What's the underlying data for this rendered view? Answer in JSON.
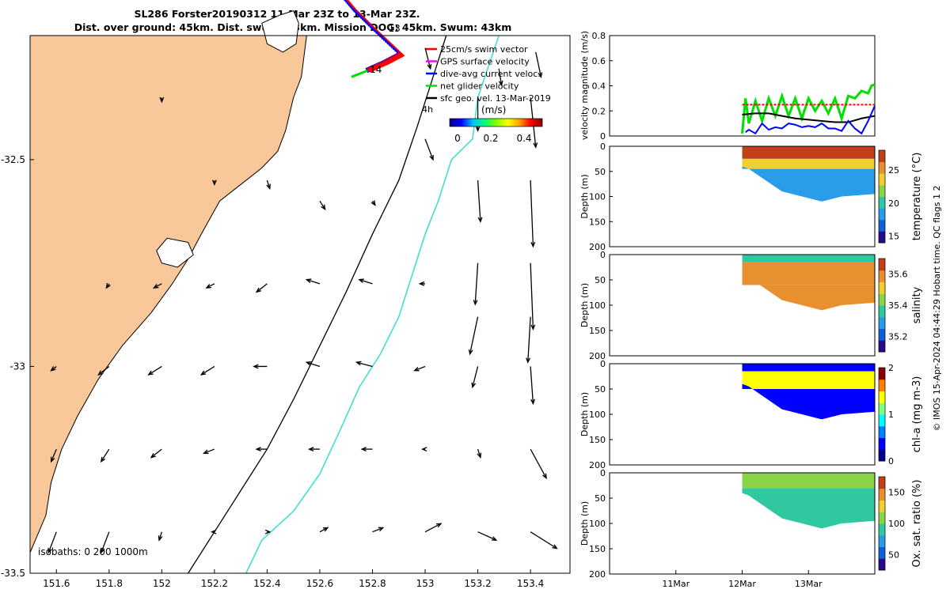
{
  "title": {
    "line1": "SL286 Forster20190312 11-Mar 23Z to 13-Mar 23Z.",
    "line2": "Dist. over ground: 45km. Dist. swum: 43km. Mission DOG: 45km. Swum: 43km"
  },
  "credit": "© IMOS 15-Apr-2024 04:44:29 Hobart time. QC flags 1  2",
  "colors": {
    "land": "#f9c89a",
    "isobath_200": "#000000",
    "isobath_1000": "#40e0d0",
    "swim_vector": "#ff0000",
    "gps_surface": "#ff00ff",
    "dive_avg": "#0000ff",
    "net_glider": "#00e000",
    "sfc_geo": "#000000"
  },
  "chart_data": [
    {
      "type": "map",
      "xlim": [
        151.5,
        153.55
      ],
      "ylim": [
        -33.5,
        -32.2
      ],
      "x_ticks": [
        "151.6",
        "151.8",
        "152",
        "152.2",
        "152.4",
        "152.6",
        "152.8",
        "153",
        "153.2",
        "153.4"
      ],
      "y_ticks": [
        "-32",
        "-32.5",
        "-33",
        "-33.5"
      ],
      "legend": {
        "placement": "top-right",
        "entries": [
          {
            "label": "25cm/s swim vector",
            "color": "#ff0000"
          },
          {
            "label": "GPS surface velocity",
            "color": "#ff00ff"
          },
          {
            "label": "dive-avg current veloc.",
            "color": "#0000ff"
          },
          {
            "label": "net glider velocity",
            "color": "#00e000"
          },
          {
            "label": "sfc geo. vel. 13-Mar-2019",
            "color": "#000000"
          }
        ],
        "colorbar_label": "(m/s)",
        "colorbar_ticks": [
          "0",
          "0.2",
          "0.4"
        ],
        "speed_scale_label": "4h"
      },
      "day_labels": [
        {
          "text": "12",
          "lon": 152.65,
          "lat": -32.07
        },
        {
          "text": "13",
          "lon": 152.86,
          "lat": -32.19
        },
        {
          "text": "14",
          "lon": 152.79,
          "lat": -32.29
        }
      ],
      "isobath_note": "isobaths: 0  200  1000m",
      "vectors": [
        [
          153.0,
          -32.23,
          153.02,
          -32.28
        ],
        [
          153.28,
          -32.28,
          153.29,
          -32.32
        ],
        [
          153.42,
          -32.24,
          153.44,
          -32.3
        ],
        [
          153.2,
          -32.35,
          153.2,
          -32.43
        ],
        [
          153.4,
          -32.35,
          153.42,
          -32.47
        ],
        [
          152.0,
          -32.35,
          152.0,
          -32.36
        ],
        [
          153.0,
          -32.45,
          153.03,
          -32.5
        ],
        [
          153.2,
          -32.55,
          153.21,
          -32.65
        ],
        [
          153.4,
          -32.55,
          153.41,
          -32.71
        ],
        [
          152.2,
          -32.55,
          152.2,
          -32.56
        ],
        [
          152.4,
          -32.55,
          152.41,
          -32.57
        ],
        [
          152.6,
          -32.6,
          152.62,
          -32.62
        ],
        [
          152.8,
          -32.6,
          152.81,
          -32.61
        ],
        [
          153.2,
          -32.75,
          153.19,
          -32.85
        ],
        [
          153.4,
          -32.75,
          153.41,
          -32.91
        ],
        [
          151.8,
          -32.8,
          151.79,
          -32.81
        ],
        [
          152.0,
          -32.8,
          151.97,
          -32.81
        ],
        [
          152.2,
          -32.8,
          152.17,
          -32.81
        ],
        [
          152.4,
          -32.8,
          152.36,
          -32.82
        ],
        [
          152.6,
          -32.8,
          152.55,
          -32.79
        ],
        [
          152.8,
          -32.8,
          152.75,
          -32.79
        ],
        [
          153.0,
          -32.8,
          152.98,
          -32.8
        ],
        [
          153.2,
          -32.88,
          153.17,
          -32.97
        ],
        [
          153.4,
          -32.88,
          153.39,
          -32.99
        ],
        [
          151.6,
          -33.0,
          151.58,
          -33.01
        ],
        [
          151.8,
          -33.0,
          151.76,
          -33.02
        ],
        [
          152.0,
          -33.0,
          151.95,
          -33.02
        ],
        [
          152.2,
          -33.0,
          152.15,
          -33.02
        ],
        [
          152.4,
          -33.0,
          152.35,
          -33.0
        ],
        [
          152.6,
          -33.0,
          152.55,
          -32.99
        ],
        [
          152.8,
          -33.0,
          152.74,
          -32.99
        ],
        [
          153.0,
          -33.0,
          152.96,
          -33.01
        ],
        [
          153.2,
          -33.0,
          153.18,
          -33.05
        ],
        [
          153.4,
          -33.0,
          153.41,
          -33.09
        ],
        [
          151.6,
          -33.2,
          151.58,
          -33.23
        ],
        [
          151.8,
          -33.2,
          151.77,
          -33.23
        ],
        [
          152.0,
          -33.2,
          151.96,
          -33.22
        ],
        [
          152.2,
          -33.2,
          152.16,
          -33.21
        ],
        [
          152.4,
          -33.2,
          152.36,
          -33.2
        ],
        [
          152.6,
          -33.2,
          152.56,
          -33.2
        ],
        [
          152.8,
          -33.2,
          152.76,
          -33.2
        ],
        [
          153.0,
          -33.2,
          152.99,
          -33.2
        ],
        [
          153.2,
          -33.2,
          153.21,
          -33.22
        ],
        [
          153.4,
          -33.2,
          153.46,
          -33.27
        ],
        [
          151.6,
          -33.4,
          151.57,
          -33.45
        ],
        [
          151.8,
          -33.4,
          151.77,
          -33.45
        ],
        [
          152.0,
          -33.4,
          151.99,
          -33.42
        ],
        [
          152.2,
          -33.4,
          152.19,
          -33.4
        ],
        [
          152.4,
          -33.4,
          152.41,
          -33.4
        ],
        [
          152.6,
          -33.4,
          152.63,
          -33.39
        ],
        [
          152.8,
          -33.4,
          152.84,
          -33.39
        ],
        [
          153.0,
          -33.4,
          153.06,
          -33.38
        ],
        [
          153.2,
          -33.4,
          153.27,
          -33.42
        ],
        [
          153.4,
          -33.4,
          153.5,
          -33.44
        ]
      ]
    },
    {
      "type": "line",
      "ylabel": "velocity magnitude (m/s)",
      "ylim": [
        0,
        0.8
      ],
      "y_ticks": [
        "0",
        "0.2",
        "0.4",
        "0.6",
        "0.8"
      ],
      "xlim_days": [
        10.0,
        14.0
      ],
      "series": [
        {
          "color": "#00e000",
          "x": [
            12.0,
            12.05,
            12.1,
            12.2,
            12.3,
            12.4,
            12.5,
            12.6,
            12.7,
            12.8,
            12.9,
            13.0,
            13.1,
            13.2,
            13.3,
            13.4,
            13.5,
            13.6,
            13.7,
            13.8,
            13.9,
            13.95,
            14.0
          ],
          "values": [
            0.02,
            0.3,
            0.1,
            0.28,
            0.12,
            0.3,
            0.16,
            0.32,
            0.16,
            0.3,
            0.14,
            0.3,
            0.2,
            0.28,
            0.18,
            0.3,
            0.14,
            0.32,
            0.3,
            0.36,
            0.34,
            0.4,
            0.41
          ]
        },
        {
          "color": "#000000",
          "x": [
            12.0,
            12.2,
            12.4,
            12.6,
            12.8,
            13.0,
            13.2,
            13.4,
            13.6,
            13.8,
            14.0
          ],
          "values": [
            0.17,
            0.18,
            0.18,
            0.16,
            0.14,
            0.13,
            0.12,
            0.11,
            0.11,
            0.14,
            0.16
          ]
        },
        {
          "color": "#0000ff",
          "x": [
            12.05,
            12.1,
            12.2,
            12.3,
            12.4,
            12.5,
            12.6,
            12.7,
            12.8,
            12.9,
            13.0,
            13.1,
            13.2,
            13.3,
            13.4,
            13.5,
            13.6,
            13.7,
            13.8,
            13.9,
            14.0
          ],
          "values": [
            0.03,
            0.05,
            0.02,
            0.1,
            0.05,
            0.07,
            0.06,
            0.1,
            0.09,
            0.07,
            0.08,
            0.07,
            0.1,
            0.06,
            0.06,
            0.04,
            0.12,
            0.06,
            0.02,
            0.12,
            0.24
          ]
        },
        {
          "color": "#ff0000",
          "x": [
            12.0,
            12.5,
            13.0,
            13.5,
            14.0
          ],
          "values": [
            0.25,
            0.25,
            0.25,
            0.25,
            0.25
          ]
        }
      ]
    },
    {
      "type": "heatmap",
      "ylabel": "Depth (m)",
      "ylim": [
        0,
        200
      ],
      "y_ticks": [
        "0",
        "50",
        "100",
        "150",
        "200"
      ],
      "colorbar_label": "temperature (°C)",
      "colorbar_ticks": [
        "15",
        "20",
        "25"
      ],
      "clim": [
        14,
        28
      ],
      "layers": [
        {
          "top": 0,
          "bottom": 25,
          "value": 27
        },
        {
          "top": 25,
          "bottom": 45,
          "value": 23
        },
        {
          "top": 45,
          "bottom": 110,
          "value": 18
        }
      ]
    },
    {
      "type": "heatmap",
      "ylabel": "Depth (m)",
      "ylim": [
        0,
        200
      ],
      "y_ticks": [
        "0",
        "50",
        "100",
        "150",
        "200"
      ],
      "colorbar_label": "salinity",
      "colorbar_ticks": [
        "35.2",
        "35.4",
        "35.6"
      ],
      "clim": [
        35.1,
        35.7
      ],
      "layers": [
        {
          "top": 0,
          "bottom": 15,
          "value": 35.4
        },
        {
          "top": 15,
          "bottom": 60,
          "value": 35.62
        },
        {
          "top": 60,
          "bottom": 110,
          "value": 35.6
        }
      ]
    },
    {
      "type": "heatmap",
      "ylabel": "Depth (m)",
      "ylim": [
        0,
        200
      ],
      "y_ticks": [
        "0",
        "50",
        "100",
        "150",
        "200"
      ],
      "colorbar_label": "chl-a (mg m-3)",
      "colorbar_ticks": [
        "0",
        "1",
        "2"
      ],
      "clim": [
        0,
        2
      ],
      "layers": [
        {
          "top": 0,
          "bottom": 15,
          "value": 0.3
        },
        {
          "top": 15,
          "bottom": 50,
          "value": 1.5
        },
        {
          "top": 50,
          "bottom": 110,
          "value": 0.15
        }
      ]
    },
    {
      "type": "heatmap",
      "ylabel": "Depth (m)",
      "ylim": [
        0,
        200
      ],
      "y_ticks": [
        "0",
        "50",
        "100",
        "150",
        "200"
      ],
      "x_ticks": [
        "11Mar",
        "12Mar",
        "13Mar"
      ],
      "colorbar_label": "Ox. sat. ratio (%)",
      "colorbar_ticks": [
        "50",
        "100",
        "150"
      ],
      "clim": [
        25,
        175
      ],
      "layers": [
        {
          "top": 0,
          "bottom": 30,
          "value": 115
        },
        {
          "top": 30,
          "bottom": 110,
          "value": 95
        }
      ]
    }
  ]
}
